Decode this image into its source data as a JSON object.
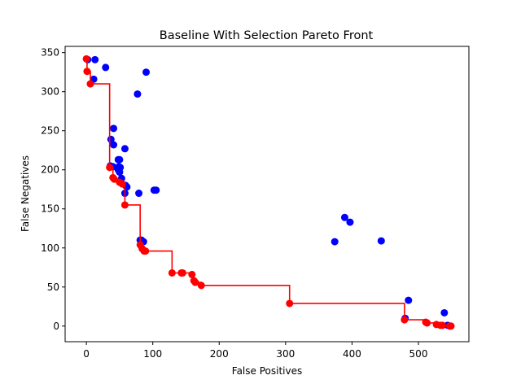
{
  "chart_data": {
    "type": "scatter",
    "title": "Baseline With Selection Pareto Front",
    "xlabel": "False Positives",
    "ylabel": "False Negatives",
    "xlim": [
      -32,
      576
    ],
    "ylim": [
      -20,
      358
    ],
    "xticks": [
      0,
      100,
      200,
      300,
      400,
      500
    ],
    "yticks": [
      0,
      50,
      100,
      150,
      200,
      250,
      300,
      350
    ],
    "grid": false,
    "legend": "none",
    "colors": {
      "all_points": "#0000ff",
      "pareto": "#ff0000"
    },
    "series": [
      {
        "color": "#0000ff",
        "marker": "circle",
        "points": [
          [
            2,
            341
          ],
          [
            13,
            341
          ],
          [
            29,
            331
          ],
          [
            11,
            316
          ],
          [
            90,
            325
          ],
          [
            77,
            297
          ],
          [
            41,
            253
          ],
          [
            37,
            239
          ],
          [
            41,
            232
          ],
          [
            58,
            227
          ],
          [
            48,
            213
          ],
          [
            50,
            213
          ],
          [
            36,
            205
          ],
          [
            49,
            204
          ],
          [
            51,
            203
          ],
          [
            40,
            204
          ],
          [
            48,
            200
          ],
          [
            50,
            197
          ],
          [
            53,
            189
          ],
          [
            59,
            180
          ],
          [
            61,
            178
          ],
          [
            58,
            170
          ],
          [
            79,
            170
          ],
          [
            102,
            174
          ],
          [
            105,
            174
          ],
          [
            81,
            110
          ],
          [
            83,
            110
          ],
          [
            86,
            108
          ],
          [
            389,
            139
          ],
          [
            397,
            133
          ],
          [
            374,
            108
          ],
          [
            444,
            109
          ],
          [
            485,
            33
          ],
          [
            539,
            17
          ],
          [
            480,
            10
          ],
          [
            544,
            1
          ]
        ]
      },
      {
        "color": "#ff0000",
        "marker": "circle",
        "line": "step",
        "points": [
          [
            0,
            342
          ],
          [
            1,
            326
          ],
          [
            6,
            310
          ],
          [
            35,
            203
          ],
          [
            40,
            190
          ],
          [
            42,
            188
          ],
          [
            50,
            184
          ],
          [
            54,
            182
          ],
          [
            58,
            155
          ],
          [
            81,
            104
          ],
          [
            84,
            99
          ],
          [
            87,
            96
          ],
          [
            89,
            96
          ],
          [
            129,
            68
          ],
          [
            143,
            68
          ],
          [
            145,
            68
          ],
          [
            159,
            66
          ],
          [
            162,
            58
          ],
          [
            164,
            56
          ],
          [
            173,
            52
          ],
          [
            306,
            29
          ],
          [
            479,
            8
          ],
          [
            511,
            5
          ],
          [
            513,
            4
          ],
          [
            527,
            2
          ],
          [
            533,
            1
          ],
          [
            536,
            1
          ],
          [
            547,
            0
          ],
          [
            549,
            0
          ]
        ]
      }
    ]
  }
}
